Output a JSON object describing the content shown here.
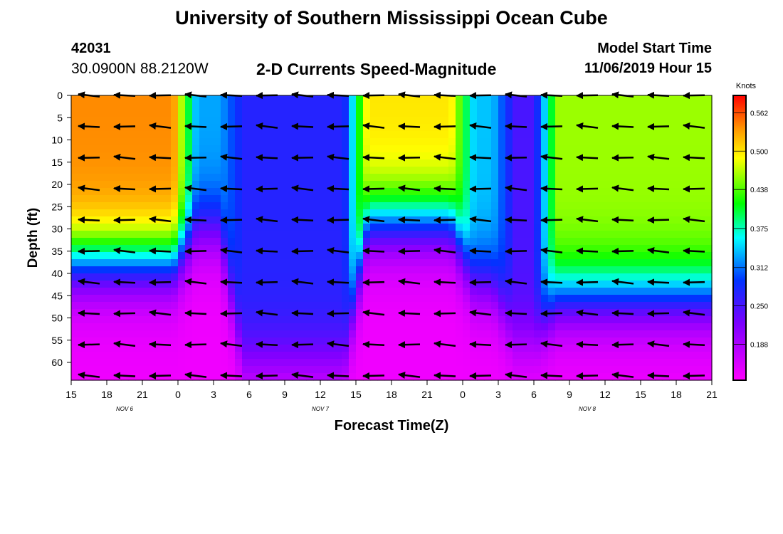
{
  "header": {
    "title": "University of Southern Mississippi Ocean Cube",
    "station_id": "42031",
    "coordinates": "30.0900N 88.2120W",
    "plot_title": "2-D Currents Speed-Magnitude",
    "model_start_label": "Model Start Time",
    "model_start_value": "11/06/2019 Hour 15"
  },
  "footer": {
    "title": "University of Southern Mississippi Ocean Cube"
  },
  "chart_data": {
    "type": "heatmap",
    "title": "2-D Currents Speed-Magnitude",
    "xlabel": "Forecast Time(Z)",
    "ylabel": "Depth (ft)",
    "x_ticks": [
      "15",
      "18",
      "21",
      "0",
      "3",
      "6",
      "9",
      "12",
      "15",
      "18",
      "21",
      "0",
      "3",
      "6",
      "9",
      "12",
      "15",
      "18",
      "21"
    ],
    "x_range_hours": [
      0,
      54
    ],
    "date_labels": [
      {
        "label": "NOV 6",
        "hour": 4.5
      },
      {
        "label": "NOV 7",
        "hour": 21
      },
      {
        "label": "NOV 8",
        "hour": 43.5
      }
    ],
    "y_ticks": [
      0,
      5,
      10,
      15,
      20,
      25,
      30,
      35,
      40,
      45,
      50,
      55,
      60
    ],
    "ylim": [
      0,
      64
    ],
    "colorbar": {
      "unit": "Knots",
      "range": [
        0.13,
        0.59
      ],
      "ticks": [
        "0.562",
        "0.500",
        "0.438",
        "0.375",
        "0.312",
        "0.250",
        "0.188"
      ]
    },
    "segments": [
      {
        "start_hour": 0,
        "end_hour": 9.6,
        "surface_speed": 0.54,
        "half_depth_ft": 37
      },
      {
        "start_hour": 9.6,
        "end_hour": 13.5,
        "surface_speed": 0.33,
        "half_depth_ft": 30
      },
      {
        "start_hour": 13.5,
        "end_hour": 24.0,
        "surface_speed": 0.27,
        "half_depth_ft": 60
      },
      {
        "start_hour": 24.0,
        "end_hour": 33.0,
        "surface_speed": 0.5,
        "half_depth_ft": 28
      },
      {
        "start_hour": 33.0,
        "end_hour": 36.5,
        "surface_speed": 0.34,
        "half_depth_ft": 42
      },
      {
        "start_hour": 36.5,
        "end_hour": 40.0,
        "surface_speed": 0.25,
        "half_depth_ft": 55
      },
      {
        "start_hour": 40.0,
        "end_hour": 54.0,
        "surface_speed": 0.46,
        "half_depth_ft": 45
      }
    ],
    "vectors": {
      "hours": [
        1.5,
        4.5,
        7.5,
        10.5,
        13.5,
        16.5,
        19.5,
        22.5,
        25.5,
        28.5,
        31.5,
        34.5,
        37.5,
        40.5,
        43.5,
        46.5,
        49.5,
        52.5
      ],
      "depths_ft": [
        0,
        7,
        14,
        21,
        28,
        35,
        42,
        49,
        56,
        63
      ],
      "direction": "westward"
    }
  }
}
